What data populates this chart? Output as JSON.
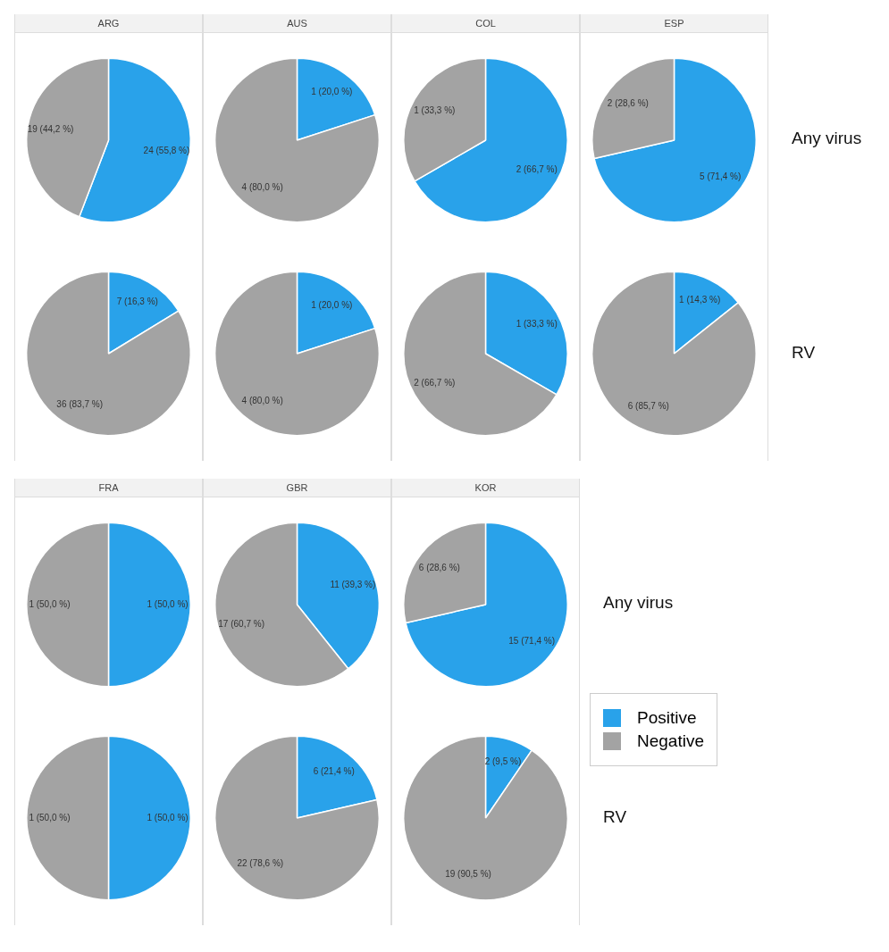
{
  "chart_data": [
    {
      "type": "pie",
      "title": "ARG",
      "categories": [
        null,
        null
      ],
      "values": [
        24,
        19
      ],
      "value_labels": [
        "24 (55,8 %)",
        "19 (44,2 %)"
      ],
      "colors": [
        "#29a2ea",
        "#a3a3a3"
      ]
    },
    {
      "type": "pie",
      "title": "AUS",
      "categories": [
        null,
        null
      ],
      "values": [
        1,
        4
      ],
      "value_labels": [
        "1 (20,0 %)",
        "4 (80,0 %)"
      ],
      "colors": [
        "#29a2ea",
        "#a3a3a3"
      ]
    },
    {
      "type": "pie",
      "title": "COL",
      "categories": [
        null,
        null
      ],
      "values": [
        2,
        1
      ],
      "value_labels": [
        "2 (66,7 %)",
        "1 (33,3 %)"
      ],
      "colors": [
        "#29a2ea",
        "#a3a3a3"
      ]
    },
    {
      "type": "pie",
      "title": "ESP",
      "categories": [
        null,
        null
      ],
      "values": [
        5,
        2
      ],
      "value_labels": [
        "5 (71,4 %)",
        "2 (28,6 %)"
      ],
      "colors": [
        "#29a2ea",
        "#a3a3a3"
      ],
      "annotations": [
        "Any virus"
      ]
    },
    {
      "type": "pie",
      "categories": [
        null,
        null
      ],
      "values": [
        7,
        36
      ],
      "value_labels": [
        "7 (16,3 %)",
        "36 (83,7 %)"
      ],
      "colors": [
        "#29a2ea",
        "#a3a3a3"
      ]
    },
    {
      "type": "pie",
      "categories": [
        null,
        null
      ],
      "values": [
        1,
        4
      ],
      "value_labels": [
        "1 (20,0 %)",
        "4 (80,0 %)"
      ],
      "colors": [
        "#29a2ea",
        "#a3a3a3"
      ]
    },
    {
      "type": "pie",
      "categories": [
        null,
        null
      ],
      "values": [
        1,
        2
      ],
      "value_labels": [
        "1 (33,3 %)",
        "2 (66,7 %)"
      ],
      "colors": [
        "#29a2ea",
        "#a3a3a3"
      ]
    },
    {
      "type": "pie",
      "categories": [
        null,
        null
      ],
      "values": [
        1,
        6
      ],
      "value_labels": [
        "1 (14,3 %)",
        "6 (85,7 %)"
      ],
      "colors": [
        "#29a2ea",
        "#a3a3a3"
      ],
      "annotations": [
        "RV"
      ]
    },
    {
      "type": "pie",
      "title": "FRA",
      "categories": [
        null,
        null
      ],
      "values": [
        1,
        1
      ],
      "value_labels": [
        "1 (50,0 %)",
        "1 (50,0 %)"
      ],
      "colors": [
        "#29a2ea",
        "#a3a3a3"
      ]
    },
    {
      "type": "pie",
      "title": "GBR",
      "categories": [
        null,
        null
      ],
      "values": [
        11,
        17
      ],
      "value_labels": [
        "11 (39,3 %)",
        "17 (60,7 %)"
      ],
      "colors": [
        "#29a2ea",
        "#a3a3a3"
      ]
    },
    {
      "type": "pie",
      "title": "KOR",
      "categories": [
        "Positive",
        "Negative"
      ],
      "values": [
        15,
        6
      ],
      "value_labels": [
        "15 (71,4 %)",
        "6 (28,6 %)"
      ],
      "colors": [
        "#29a2ea",
        "#a3a3a3"
      ],
      "annotations": [
        "Any virus"
      ],
      "legend": "right"
    },
    {
      "type": "pie",
      "categories": [
        null,
        null
      ],
      "values": [
        1,
        1
      ],
      "value_labels": [
        "1 (50,0 %)",
        "1 (50,0 %)"
      ],
      "colors": [
        "#29a2ea",
        "#a3a3a3"
      ]
    },
    {
      "type": "pie",
      "categories": [
        null,
        null
      ],
      "values": [
        6,
        22
      ],
      "value_labels": [
        "6 (21,4 %)",
        "22 (78,6 %)"
      ],
      "colors": [
        "#29a2ea",
        "#a3a3a3"
      ]
    },
    {
      "type": "pie",
      "categories": [
        null,
        null
      ],
      "values": [
        2,
        19
      ],
      "value_labels": [
        "2 (9,5 %)",
        "19 (90,5 %)"
      ],
      "colors": [
        "#29a2ea",
        "#a3a3a3"
      ],
      "annotations": [
        "RV"
      ]
    }
  ]
}
